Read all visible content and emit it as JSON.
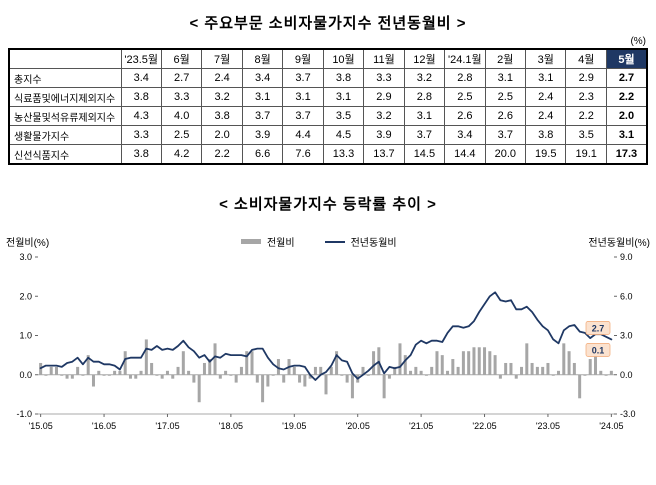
{
  "page": {
    "table_title": "< 주요부문 소비자물가지수 전년동월비 >",
    "unit_label": "(%)",
    "chart_title": "< 소비자물가지수 등락률 추이 >"
  },
  "colors": {
    "bar": "#a6a6a6",
    "line": "#1f3864",
    "highlight_header_bg": "#1f3864",
    "end_label_bg": "#fbe2cf",
    "end_label_border": "#f4b183",
    "end_label_text": "#1f3864",
    "axis_line": "#aaaaaa"
  },
  "table": {
    "columns": [
      "'23.5월",
      "6월",
      "7월",
      "8월",
      "9월",
      "10월",
      "11월",
      "12월",
      "'24.1월",
      "2월",
      "3월",
      "4월",
      "5월"
    ],
    "highlight_column_index": 12,
    "rows": [
      {
        "label": "총지수",
        "values": [
          3.4,
          2.7,
          2.4,
          3.4,
          3.7,
          3.8,
          3.3,
          3.2,
          2.8,
          3.1,
          3.1,
          2.9,
          2.7
        ]
      },
      {
        "label": "식료품및에너지제외지수",
        "values": [
          3.8,
          3.3,
          3.2,
          3.1,
          3.1,
          3.1,
          2.9,
          2.8,
          2.5,
          2.5,
          2.4,
          2.3,
          2.2
        ]
      },
      {
        "label": "농산물및석유류제외지수",
        "values": [
          4.3,
          4.0,
          3.8,
          3.7,
          3.7,
          3.5,
          3.2,
          3.1,
          2.6,
          2.6,
          2.4,
          2.2,
          2.0
        ]
      },
      {
        "label": "생활물가지수",
        "values": [
          3.3,
          2.5,
          2.0,
          3.9,
          4.4,
          4.5,
          3.9,
          3.7,
          3.4,
          3.7,
          3.8,
          3.5,
          3.1
        ]
      },
      {
        "label": "신선식품지수",
        "values": [
          3.8,
          4.2,
          2.2,
          6.6,
          7.6,
          13.3,
          13.7,
          14.5,
          14.4,
          20.0,
          19.5,
          19.1,
          17.3
        ]
      }
    ]
  },
  "chart_data": {
    "type": "bar+line",
    "title": "< 소비자물가지수 등락률 추이 >",
    "x_start": "2015.05",
    "x_end": "2024.05",
    "x_tick_labels": [
      "'15.05",
      "'16.05",
      "'17.05",
      "'18.05",
      "'19.05",
      "'20.05",
      "'21.05",
      "'22.05",
      "'23.05",
      "'24.05"
    ],
    "x_tick_indices": [
      0,
      12,
      24,
      36,
      48,
      60,
      72,
      84,
      96,
      108
    ],
    "left_axis": {
      "label": "전월비(%)",
      "ticks": [
        3.0,
        2.0,
        1.0,
        0.0,
        -1.0
      ],
      "range": [
        -1.0,
        3.0
      ]
    },
    "right_axis": {
      "label": "전년동월비(%)",
      "ticks": [
        9.0,
        6.0,
        3.0,
        0.0,
        -3.0
      ],
      "range": [
        -3.0,
        9.0
      ]
    },
    "legend": [
      {
        "name": "전월비",
        "type": "bar",
        "color": "#a6a6a6"
      },
      {
        "name": "전년동월비",
        "type": "line",
        "color": "#1f3864"
      }
    ],
    "end_labels": [
      {
        "series": "전년동월비",
        "value": "2.7"
      },
      {
        "series": "전월비",
        "value": "0.1"
      }
    ],
    "series": [
      {
        "name": "전월비",
        "type": "bar",
        "axis": "left",
        "values": [
          0.3,
          0.0,
          0.2,
          0.2,
          0.0,
          -0.1,
          -0.1,
          0.2,
          0.0,
          0.5,
          -0.3,
          0.1,
          0.0,
          0.0,
          0.1,
          0.1,
          0.6,
          -0.1,
          -0.1,
          0.1,
          0.9,
          0.3,
          0.0,
          -0.1,
          0.1,
          -0.1,
          0.2,
          0.6,
          0.1,
          -0.2,
          -0.7,
          0.3,
          0.4,
          0.8,
          -0.1,
          0.1,
          0.0,
          -0.2,
          0.2,
          0.6,
          0.6,
          -0.2,
          -0.7,
          -0.3,
          0.0,
          0.4,
          -0.2,
          0.4,
          0.2,
          -0.2,
          -0.3,
          -0.1,
          0.2,
          0.2,
          -0.5,
          0.2,
          0.6,
          0.0,
          -0.2,
          -0.6,
          -0.2,
          0.2,
          0.0,
          0.6,
          0.7,
          -0.6,
          -0.1,
          0.2,
          0.8,
          0.5,
          0.1,
          0.2,
          0.1,
          0.0,
          0.2,
          0.6,
          0.5,
          0.1,
          0.4,
          0.2,
          0.6,
          0.6,
          0.7,
          0.7,
          0.7,
          0.6,
          0.5,
          -0.1,
          0.3,
          0.3,
          -0.1,
          0.2,
          0.8,
          0.3,
          0.2,
          0.2,
          0.3,
          0.0,
          0.1,
          0.8,
          0.6,
          0.3,
          -0.6,
          0.0,
          0.4,
          0.5,
          0.1,
          0.0,
          0.1
        ]
      },
      {
        "name": "전년동월비",
        "type": "line",
        "axis": "right",
        "values": [
          0.5,
          0.7,
          0.7,
          0.7,
          0.6,
          0.9,
          1.0,
          1.3,
          0.8,
          1.3,
          1.0,
          1.0,
          0.8,
          0.8,
          0.7,
          0.4,
          1.2,
          1.3,
          1.3,
          1.3,
          2.0,
          1.9,
          2.2,
          1.9,
          2.0,
          1.9,
          2.2,
          2.6,
          2.1,
          1.8,
          1.3,
          1.5,
          1.0,
          1.4,
          1.3,
          1.6,
          1.5,
          1.5,
          1.5,
          1.4,
          1.9,
          2.0,
          2.0,
          1.3,
          0.8,
          0.5,
          0.4,
          0.6,
          0.7,
          0.7,
          0.6,
          0.0,
          -0.4,
          0.0,
          0.2,
          0.7,
          1.5,
          1.1,
          1.0,
          0.1,
          -0.3,
          0.0,
          0.3,
          0.7,
          1.0,
          0.1,
          0.6,
          0.5,
          0.6,
          1.1,
          1.5,
          2.3,
          2.6,
          2.4,
          2.6,
          2.6,
          2.5,
          3.2,
          3.7,
          3.7,
          3.6,
          3.7,
          4.1,
          4.8,
          5.4,
          6.0,
          6.3,
          5.7,
          5.6,
          5.7,
          5.0,
          5.0,
          5.2,
          4.8,
          4.2,
          3.7,
          3.4,
          2.7,
          2.4,
          3.4,
          3.7,
          3.8,
          3.3,
          3.2,
          2.8,
          3.1,
          3.1,
          2.9,
          2.7
        ]
      }
    ]
  }
}
